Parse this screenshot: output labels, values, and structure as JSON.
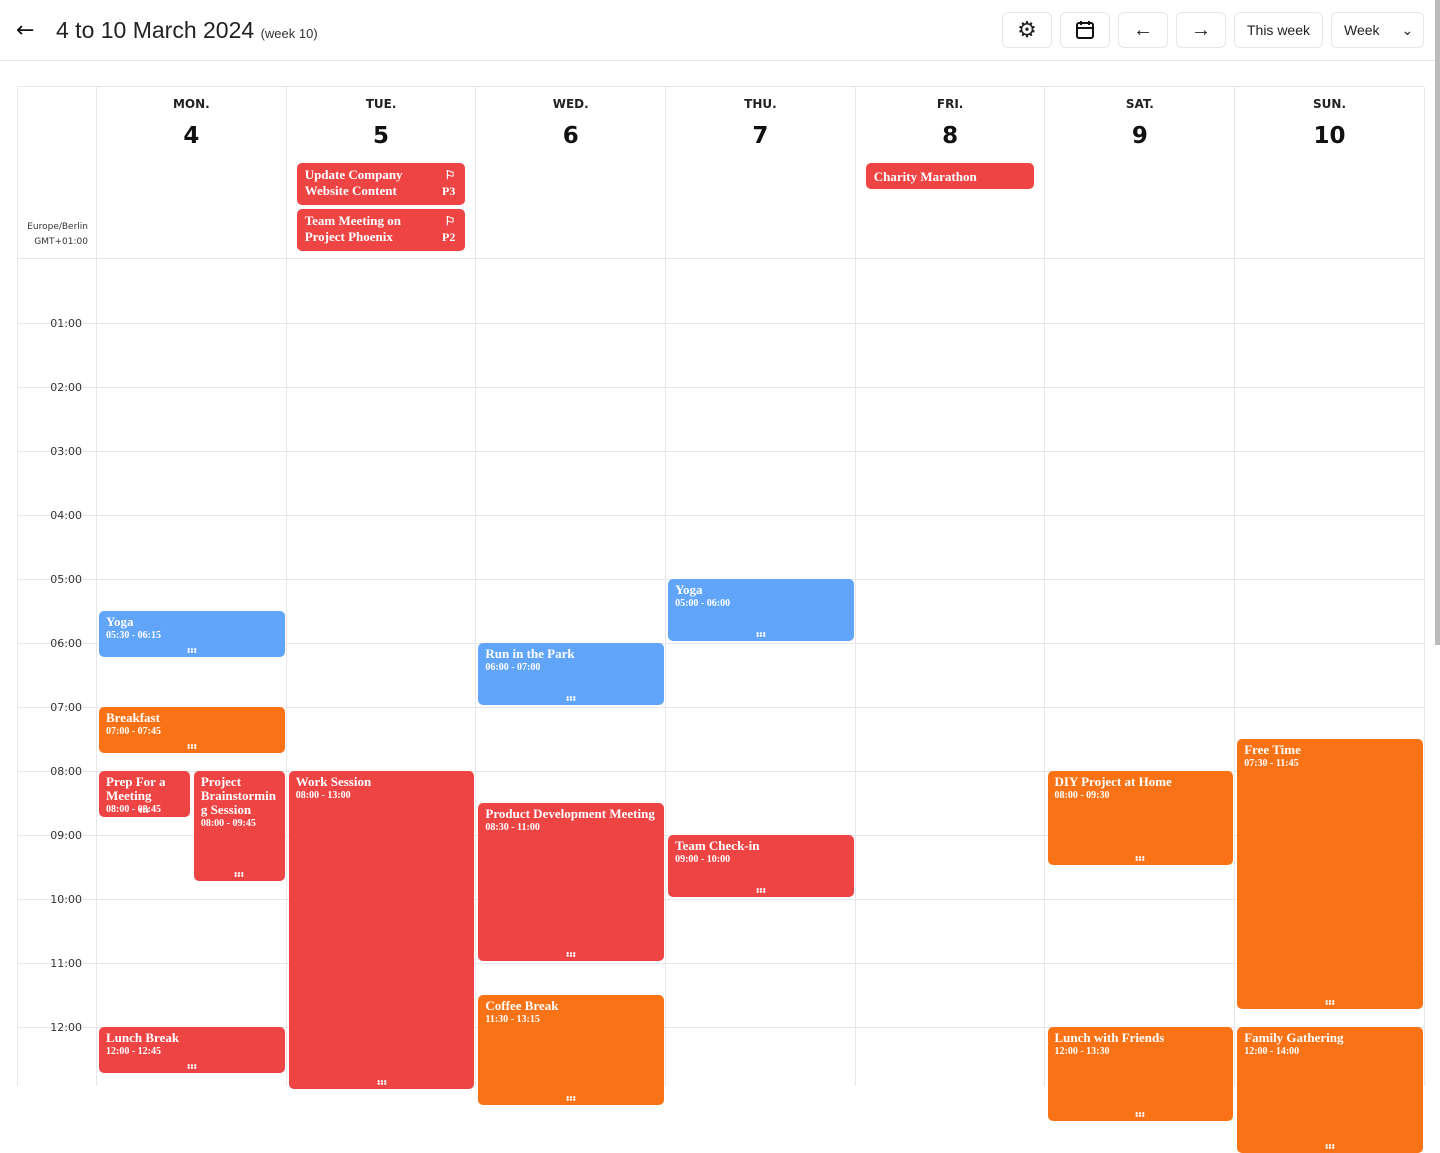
{
  "header": {
    "title": "4 to 10 March 2024",
    "week": "(week 10)",
    "this_week": "This week",
    "view": "Week"
  },
  "timezone": {
    "name": "Europe/Berlin",
    "offset": "GMT+01:00"
  },
  "colors": {
    "red": "#ef4444",
    "blue": "#60a5fa",
    "orange": "#f97316"
  },
  "days": [
    {
      "name": "MON.",
      "num": "4"
    },
    {
      "name": "TUE.",
      "num": "5"
    },
    {
      "name": "WED.",
      "num": "6"
    },
    {
      "name": "THU.",
      "num": "7"
    },
    {
      "name": "FRI.",
      "num": "8"
    },
    {
      "name": "SAT.",
      "num": "9"
    },
    {
      "name": "SUN.",
      "num": "10"
    }
  ],
  "hours": [
    "01:00",
    "02:00",
    "03:00",
    "04:00",
    "05:00",
    "06:00",
    "07:00",
    "08:00",
    "09:00",
    "10:00",
    "11:00",
    "12:00"
  ],
  "all_day": [
    {
      "day": 1,
      "title": "Update Company Website Content",
      "priority": "P3",
      "color": "red"
    },
    {
      "day": 1,
      "title": "Team Meeting on Project Phoenix",
      "priority": "P2",
      "color": "red"
    },
    {
      "day": 4,
      "title": "Charity Marathon",
      "color": "red"
    }
  ],
  "events": [
    {
      "day": 0,
      "title": "Yoga",
      "time": "05:30 - 06:15",
      "start": 5.5,
      "end": 6.25,
      "color": "blue"
    },
    {
      "day": 0,
      "title": "Breakfast",
      "time": "07:00 - 07:45",
      "start": 7,
      "end": 7.75,
      "color": "orange"
    },
    {
      "day": 0,
      "title": "Prep For a Meeting",
      "time": "08:00 - 08:45",
      "start": 8,
      "end": 8.75,
      "color": "red",
      "half": 0
    },
    {
      "day": 0,
      "title": "Project Brainstorming Session",
      "time": "08:00 - 09:45",
      "start": 8,
      "end": 9.75,
      "color": "red",
      "half": 1
    },
    {
      "day": 0,
      "title": "Lunch Break",
      "time": "12:00 - 12:45",
      "start": 12,
      "end": 12.75,
      "color": "red"
    },
    {
      "day": 1,
      "title": "Work Session",
      "time": "08:00 - 13:00",
      "start": 8,
      "end": 13,
      "color": "red"
    },
    {
      "day": 2,
      "title": "Run in the Park",
      "time": "06:00 - 07:00",
      "start": 6,
      "end": 7,
      "color": "blue"
    },
    {
      "day": 2,
      "title": "Product Development Meeting",
      "time": "08:30 - 11:00",
      "start": 8.5,
      "end": 11,
      "color": "red"
    },
    {
      "day": 2,
      "title": "Coffee Break",
      "time": "11:30 - 13:15",
      "start": 11.5,
      "end": 13.25,
      "color": "orange"
    },
    {
      "day": 3,
      "title": "Yoga",
      "time": "05:00 - 06:00",
      "start": 5,
      "end": 6,
      "color": "blue"
    },
    {
      "day": 3,
      "title": "Team Check-in",
      "time": "09:00 - 10:00",
      "start": 9,
      "end": 10,
      "color": "red"
    },
    {
      "day": 5,
      "title": "DIY Project at Home",
      "time": "08:00 - 09:30",
      "start": 8,
      "end": 9.5,
      "color": "orange"
    },
    {
      "day": 5,
      "title": "Lunch with Friends",
      "time": "12:00 - 13:30",
      "start": 12,
      "end": 13.5,
      "color": "orange"
    },
    {
      "day": 6,
      "title": "Free Time",
      "time": "07:30 - 11:45",
      "start": 7.5,
      "end": 11.75,
      "color": "orange"
    },
    {
      "day": 6,
      "title": "Family Gathering",
      "time": "12:00 - 14:00",
      "start": 12,
      "end": 14,
      "color": "orange"
    }
  ]
}
